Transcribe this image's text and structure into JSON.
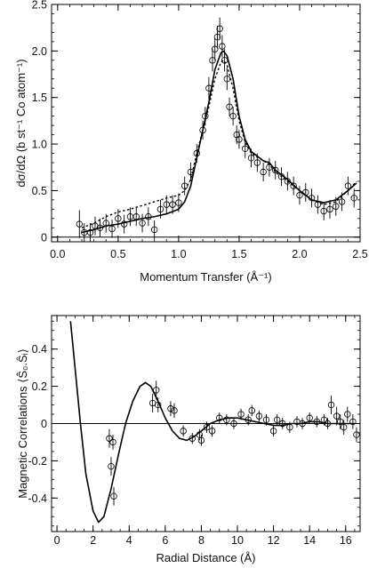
{
  "chart_data": [
    {
      "type": "scatter",
      "xlabel": "Momentum Transfer (Å⁻¹)",
      "ylabel": "dσ/dΩ (b st⁻¹ Co atom⁻¹)",
      "xlim": [
        -0.05,
        2.5
      ],
      "ylim": [
        -0.05,
        2.5
      ],
      "xticks": [
        "0.0",
        "0.5",
        "1.0",
        "1.5",
        "2.0",
        "2.5"
      ],
      "yticks": [
        "0",
        "0.5",
        "1.0",
        "1.5",
        "2.0",
        "2.5"
      ],
      "grid": false,
      "series": [
        {
          "kind": "points-with-error-bars",
          "x": [
            0.18,
            0.22,
            0.27,
            0.31,
            0.35,
            0.4,
            0.45,
            0.5,
            0.55,
            0.6,
            0.65,
            0.7,
            0.75,
            0.8,
            0.85,
            0.9,
            0.95,
            1.0,
            1.05,
            1.1,
            1.15,
            1.2,
            1.22,
            1.25,
            1.28,
            1.3,
            1.32,
            1.34,
            1.36,
            1.38,
            1.4,
            1.42,
            1.45,
            1.48,
            1.5,
            1.55,
            1.6,
            1.65,
            1.7,
            1.75,
            1.8,
            1.85,
            1.9,
            1.95,
            2.0,
            2.05,
            2.1,
            2.15,
            2.2,
            2.25,
            2.3,
            2.35,
            2.4,
            2.45
          ],
          "y": [
            0.14,
            0.05,
            0.05,
            0.12,
            0.1,
            0.15,
            0.09,
            0.2,
            0.14,
            0.22,
            0.22,
            0.15,
            0.22,
            0.08,
            0.3,
            0.35,
            0.35,
            0.37,
            0.55,
            0.7,
            0.9,
            1.15,
            1.3,
            1.6,
            1.9,
            2.02,
            2.15,
            2.24,
            2.05,
            1.9,
            1.7,
            1.4,
            1.3,
            1.1,
            1.05,
            0.95,
            0.85,
            0.8,
            0.7,
            0.75,
            0.72,
            0.65,
            0.6,
            0.55,
            0.45,
            0.48,
            0.42,
            0.35,
            0.28,
            0.3,
            0.33,
            0.38,
            0.55,
            0.42
          ],
          "err": [
            0.15,
            0.1,
            0.1,
            0.1,
            0.1,
            0.1,
            0.1,
            0.1,
            0.1,
            0.1,
            0.1,
            0.1,
            0.1,
            0.1,
            0.1,
            0.1,
            0.1,
            0.1,
            0.1,
            0.1,
            0.1,
            0.1,
            0.1,
            0.12,
            0.12,
            0.12,
            0.12,
            0.12,
            0.12,
            0.12,
            0.12,
            0.1,
            0.1,
            0.1,
            0.1,
            0.1,
            0.1,
            0.1,
            0.1,
            0.1,
            0.1,
            0.1,
            0.1,
            0.1,
            0.1,
            0.1,
            0.1,
            0.1,
            0.1,
            0.1,
            0.1,
            0.1,
            0.1,
            0.1
          ]
        },
        {
          "kind": "solid-line",
          "x": [
            0.2,
            0.3,
            0.4,
            0.5,
            0.6,
            0.7,
            0.8,
            0.9,
            1.0,
            1.05,
            1.1,
            1.15,
            1.2,
            1.25,
            1.3,
            1.35,
            1.37,
            1.4,
            1.45,
            1.5,
            1.55,
            1.6,
            1.7,
            1.75,
            1.8,
            1.9,
            2.0,
            2.1,
            2.2,
            2.3,
            2.4,
            2.47
          ],
          "y": [
            0.05,
            0.08,
            0.12,
            0.14,
            0.17,
            0.2,
            0.22,
            0.25,
            0.3,
            0.38,
            0.55,
            0.85,
            1.15,
            1.45,
            1.8,
            1.98,
            2.0,
            1.95,
            1.7,
            1.3,
            1.05,
            0.92,
            0.82,
            0.8,
            0.72,
            0.62,
            0.5,
            0.4,
            0.37,
            0.4,
            0.5,
            0.58
          ]
        },
        {
          "kind": "dashed-line",
          "x": [
            0.2,
            0.3,
            0.4,
            0.5,
            0.6,
            0.7,
            0.8,
            0.9,
            1.0,
            1.05,
            1.1,
            1.15,
            1.2,
            1.25,
            1.3,
            1.35,
            1.37,
            1.4,
            1.45,
            1.5,
            1.55,
            1.6,
            1.7,
            1.75,
            1.8,
            1.9,
            2.0,
            2.1,
            2.2,
            2.3,
            2.4,
            2.47
          ],
          "y": [
            0.1,
            0.15,
            0.22,
            0.27,
            0.3,
            0.34,
            0.38,
            0.42,
            0.45,
            0.5,
            0.62,
            0.9,
            1.15,
            1.4,
            1.7,
            1.88,
            1.9,
            1.85,
            1.6,
            1.25,
            1.02,
            0.9,
            0.82,
            0.78,
            0.7,
            0.6,
            0.5,
            0.4,
            0.35,
            0.38,
            0.5,
            0.6
          ]
        }
      ]
    },
    {
      "type": "scatter",
      "xlabel": "Radial Distance (Å)",
      "ylabel": "Magnetic Correlations ⟨Ŝ₀.Ŝᵢ⟩",
      "xlim": [
        -0.3,
        16.8
      ],
      "ylim": [
        -0.58,
        0.58
      ],
      "xticks": [
        "0",
        "2",
        "4",
        "6",
        "8",
        "10",
        "12",
        "14",
        "16"
      ],
      "yticks": [
        "-0.4",
        "-0.2",
        "0",
        "0.2",
        "0.4"
      ],
      "grid": false,
      "series": [
        {
          "kind": "points-with-error-bars",
          "x": [
            2.9,
            3.0,
            3.1,
            3.15,
            5.3,
            5.5,
            5.6,
            6.3,
            6.5,
            7.0,
            7.5,
            7.9,
            8.0,
            8.3,
            8.6,
            9.0,
            9.4,
            9.8,
            10.2,
            10.6,
            10.8,
            11.2,
            11.6,
            12.0,
            12.2,
            12.5,
            12.9,
            13.3,
            13.6,
            14.0,
            14.4,
            14.8,
            15.0,
            15.2,
            15.5,
            15.7,
            15.9,
            16.1,
            16.4,
            16.6
          ],
          "y": [
            -0.08,
            -0.23,
            -0.1,
            -0.39,
            0.11,
            0.18,
            0.1,
            0.08,
            0.07,
            -0.04,
            -0.08,
            -0.06,
            -0.09,
            -0.02,
            -0.04,
            0.03,
            0.02,
            0.0,
            0.05,
            0.02,
            0.07,
            0.04,
            0.02,
            -0.04,
            0.02,
            0.0,
            -0.02,
            0.01,
            0.0,
            0.03,
            0.01,
            0.02,
            0.0,
            0.1,
            0.04,
            0.01,
            -0.02,
            0.05,
            0.01,
            -0.06
          ],
          "err": [
            0.05,
            0.05,
            0.04,
            0.05,
            0.05,
            0.05,
            0.04,
            0.04,
            0.04,
            0.03,
            0.03,
            0.03,
            0.03,
            0.03,
            0.03,
            0.03,
            0.03,
            0.03,
            0.03,
            0.03,
            0.03,
            0.03,
            0.03,
            0.03,
            0.03,
            0.03,
            0.03,
            0.03,
            0.03,
            0.03,
            0.03,
            0.03,
            0.03,
            0.05,
            0.05,
            0.04,
            0.04,
            0.04,
            0.04,
            0.04
          ]
        },
        {
          "kind": "solid-line",
          "x": [
            0.75,
            1.0,
            1.3,
            1.6,
            2.0,
            2.3,
            2.6,
            3.0,
            3.4,
            3.8,
            4.2,
            4.6,
            4.9,
            5.2,
            5.6,
            6.0,
            6.4,
            6.8,
            7.2,
            7.6,
            8.0,
            8.5,
            9.0,
            9.5,
            10.0,
            10.5,
            11.0,
            11.5,
            12.0,
            12.5,
            13.0,
            13.5,
            14.0,
            14.5,
            15.0,
            15.5,
            16.0,
            16.5
          ],
          "y": [
            0.55,
            0.3,
            0.0,
            -0.27,
            -0.47,
            -0.53,
            -0.5,
            -0.35,
            -0.17,
            0.0,
            0.12,
            0.2,
            0.22,
            0.2,
            0.12,
            0.03,
            -0.04,
            -0.08,
            -0.09,
            -0.07,
            -0.04,
            0.0,
            0.02,
            0.03,
            0.03,
            0.02,
            0.01,
            0.0,
            -0.01,
            -0.01,
            0.0,
            0.0,
            0.01,
            0.01,
            0.0,
            0.0,
            0.0,
            0.0
          ]
        }
      ]
    }
  ]
}
